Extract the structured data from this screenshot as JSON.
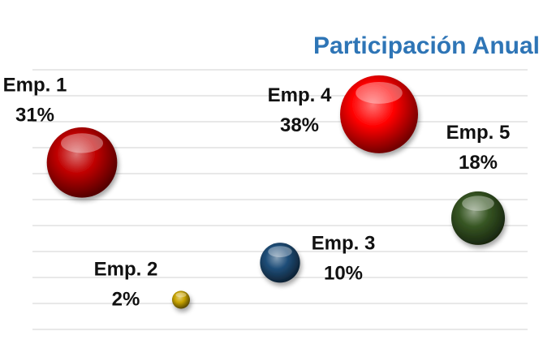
{
  "chart_data": {
    "type": "scatter",
    "title": "Participación Anual",
    "title_color": "#2e75b6",
    "grid": true,
    "legend": "none",
    "series": [
      {
        "name": "Emp. 1",
        "label": "31%",
        "value": 31,
        "x": 1,
        "y": 4.5,
        "color": "#c00000"
      },
      {
        "name": "Emp. 2",
        "label": "2%",
        "value": 2,
        "x": 2,
        "y": 0.8,
        "color": "#c9a400"
      },
      {
        "name": "Emp. 3",
        "label": "10%",
        "value": 10,
        "x": 3,
        "y": 1.8,
        "color": "#1f4e79"
      },
      {
        "name": "Emp. 4",
        "label": "38%",
        "value": 38,
        "x": 4,
        "y": 5.8,
        "color": "#ff0000"
      },
      {
        "name": "Emp. 5",
        "label": "18%",
        "value": 18,
        "x": 5,
        "y": 3.0,
        "color": "#375623"
      }
    ]
  }
}
